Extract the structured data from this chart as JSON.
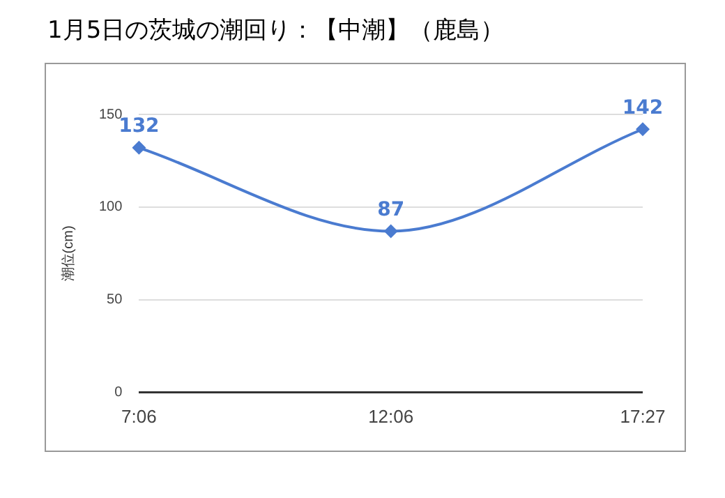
{
  "chart_data": {
    "type": "line",
    "title": "1月5日の茨城の潮回り：【中潮】（鹿島）",
    "ylabel": "潮位(cm)",
    "categories": [
      "7:06",
      "12:06",
      "17:27"
    ],
    "series": [
      {
        "color": "#4a7bd0",
        "values": [
          132,
          87,
          142
        ]
      }
    ],
    "ylim": [
      0,
      150
    ],
    "yticks": [
      0,
      50,
      100,
      150
    ],
    "grid": "y",
    "legend": false,
    "marker": "diamond",
    "data_labels": true
  }
}
